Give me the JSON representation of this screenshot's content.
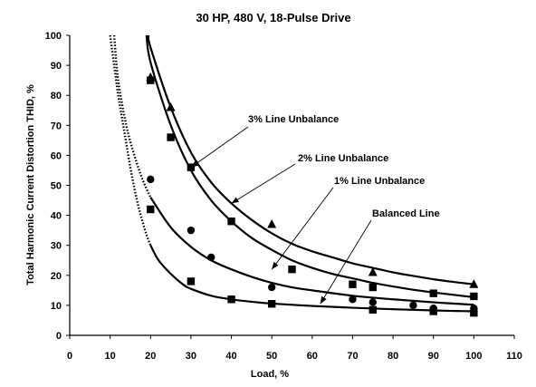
{
  "chart_data": {
    "type": "scatter",
    "title": "30 HP, 480 V, 18-Pulse Drive",
    "xlabel": "Load, %",
    "ylabel": "Total Harmonic Current Distortion THID, %",
    "xlim": [
      0,
      110
    ],
    "ylim": [
      0,
      100
    ],
    "x_ticks": [
      0,
      10,
      20,
      30,
      40,
      50,
      60,
      70,
      80,
      90,
      100,
      110
    ],
    "y_ticks": [
      0,
      10,
      20,
      30,
      40,
      50,
      60,
      70,
      80,
      90,
      100
    ],
    "grid": false,
    "legend": "none",
    "series": [
      {
        "name": "3% Line Unbalance",
        "marker": "triangle",
        "points": [
          [
            20,
            86
          ],
          [
            25,
            76
          ],
          [
            50,
            37
          ],
          [
            75,
            21
          ],
          [
            100,
            17
          ]
        ],
        "fit_curve": [
          [
            19.5,
            100
          ],
          [
            20,
            96
          ],
          [
            25,
            76
          ],
          [
            30,
            61
          ],
          [
            35,
            51
          ],
          [
            40,
            44
          ],
          [
            45,
            38.5
          ],
          [
            50,
            34
          ],
          [
            55,
            30.5
          ],
          [
            60,
            28
          ],
          [
            65,
            26
          ],
          [
            70,
            24
          ],
          [
            75,
            22.5
          ],
          [
            80,
            21
          ],
          [
            85,
            19.8
          ],
          [
            90,
            18.7
          ],
          [
            95,
            17.8
          ],
          [
            100,
            17
          ]
        ]
      },
      {
        "name": "2% Line Unbalance",
        "marker": "square",
        "points": [
          [
            20,
            85
          ],
          [
            25,
            66
          ],
          [
            30,
            56
          ],
          [
            40,
            38
          ],
          [
            55,
            22
          ],
          [
            70,
            17
          ],
          [
            75,
            16
          ],
          [
            90,
            14
          ],
          [
            100,
            13
          ]
        ],
        "fit_curve": [
          [
            19,
            100
          ],
          [
            20,
            91
          ],
          [
            25,
            70
          ],
          [
            30,
            55
          ],
          [
            35,
            45
          ],
          [
            40,
            38
          ],
          [
            45,
            32.5
          ],
          [
            50,
            28.5
          ],
          [
            55,
            25
          ],
          [
            60,
            22.5
          ],
          [
            65,
            20.5
          ],
          [
            70,
            19
          ],
          [
            75,
            17.5
          ],
          [
            80,
            16.3
          ],
          [
            85,
            15.2
          ],
          [
            90,
            14.3
          ],
          [
            95,
            13.5
          ],
          [
            100,
            12.7
          ]
        ]
      },
      {
        "name": "1% Line Unbalance",
        "marker": "circle",
        "points": [
          [
            20,
            52
          ],
          [
            30,
            35
          ],
          [
            35,
            26
          ],
          [
            50,
            16
          ],
          [
            70,
            12
          ],
          [
            75,
            11
          ],
          [
            85,
            10
          ],
          [
            90,
            9
          ],
          [
            100,
            9
          ]
        ],
        "fit_curve": [
          [
            11,
            100
          ],
          [
            12,
            85
          ],
          [
            14,
            70
          ],
          [
            16,
            60
          ],
          [
            18,
            52
          ],
          [
            20,
            46
          ],
          [
            25,
            36
          ],
          [
            30,
            29.5
          ],
          [
            35,
            25
          ],
          [
            40,
            22
          ],
          [
            45,
            19.5
          ],
          [
            50,
            17.5
          ],
          [
            55,
            16
          ],
          [
            60,
            15
          ],
          [
            70,
            13.2
          ],
          [
            80,
            12
          ],
          [
            90,
            11
          ],
          [
            100,
            10.2
          ]
        ]
      },
      {
        "name": "Balanced Line",
        "marker": "square",
        "points": [
          [
            20,
            42
          ],
          [
            30,
            18
          ],
          [
            40,
            12
          ],
          [
            50,
            10.5
          ],
          [
            75,
            8.5
          ],
          [
            90,
            8
          ],
          [
            100,
            7.5
          ]
        ],
        "fit_curve": [
          [
            10,
            100
          ],
          [
            11,
            90
          ],
          [
            12,
            80
          ],
          [
            13,
            72
          ],
          [
            14,
            64
          ],
          [
            15,
            56
          ],
          [
            16,
            49
          ],
          [
            17,
            43
          ],
          [
            18,
            38
          ],
          [
            19,
            33.5
          ],
          [
            20,
            30
          ],
          [
            22,
            25
          ],
          [
            25,
            20.5
          ],
          [
            28,
            17
          ],
          [
            30,
            15.5
          ],
          [
            35,
            13.2
          ],
          [
            40,
            12
          ],
          [
            45,
            11.2
          ],
          [
            50,
            10.6
          ],
          [
            60,
            9.8
          ],
          [
            70,
            9.2
          ],
          [
            80,
            8.7
          ],
          [
            90,
            8.3
          ],
          [
            100,
            8
          ]
        ]
      }
    ],
    "annotations": [
      {
        "text": "3% Line Unbalance",
        "target": [
          30,
          56
        ]
      },
      {
        "text": "2% Line Unbalance",
        "target": [
          40,
          44
        ]
      },
      {
        "text": "1% Line Unbalance",
        "target": [
          50,
          22
        ]
      },
      {
        "text": "Balanced Line",
        "target": [
          62,
          10.5
        ]
      }
    ]
  }
}
